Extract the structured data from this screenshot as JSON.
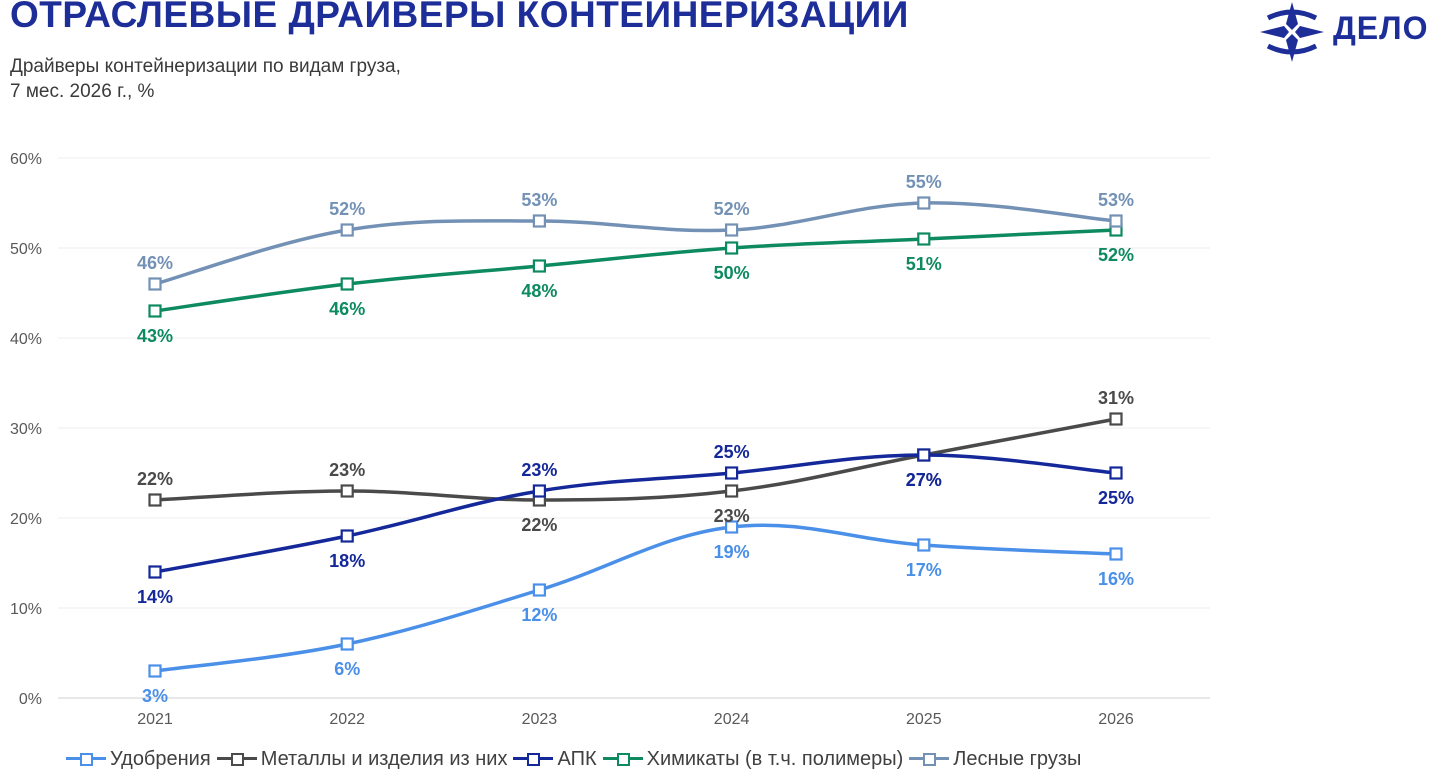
{
  "header": {
    "title": "ОТРАСЛЕВЫЕ ДРАЙВЕРЫ КОНТЕЙНЕРИЗАЦИИ",
    "subtitle_line1": "Драйверы контейнеризации по видам груза,",
    "subtitle_line2": "7 мес. 2026 г.,  %"
  },
  "logo": {
    "text": "ДЕЛО",
    "color": "#1d2e99",
    "icon": "delo-logo-icon"
  },
  "chart_data": {
    "type": "line",
    "categories": [
      "2021",
      "2022",
      "2023",
      "2024",
      "2025",
      "2026"
    ],
    "ylim": [
      0,
      60
    ],
    "y_ticks": [
      "0%",
      "10%",
      "20%",
      "30%",
      "40%",
      "50%",
      "60%"
    ],
    "grid": true,
    "legend_position": "bottom",
    "series": [
      {
        "name": "Удобрения",
        "color": "#4a8fe8",
        "values": [
          3,
          6,
          12,
          19,
          17,
          16
        ],
        "labels": [
          "3%",
          "6%",
          "12%",
          "19%",
          "17%",
          "16%"
        ]
      },
      {
        "name": "Металлы и изделия из них",
        "color": "#4a4a4a",
        "values": [
          22,
          23,
          22,
          23,
          27,
          31
        ],
        "labels": [
          "22%",
          "23%",
          "22%",
          "23%",
          "27%",
          "31%"
        ]
      },
      {
        "name": "АПК",
        "color": "#14289a",
        "values": [
          14,
          18,
          23,
          25,
          27,
          25
        ],
        "labels": [
          "14%",
          "18%",
          "23%",
          "25%",
          "27%",
          "25%"
        ]
      },
      {
        "name": "Химикаты (в т.ч. полимеры)",
        "color": "#0d8a5f",
        "values": [
          43,
          46,
          48,
          50,
          51,
          52
        ],
        "labels": [
          "43%",
          "46%",
          "48%",
          "50%",
          "51%",
          "52%"
        ]
      },
      {
        "name": "Лесные грузы",
        "color": "#7391b5",
        "values": [
          46,
          52,
          53,
          52,
          55,
          53
        ],
        "labels": [
          "46%",
          "52%",
          "53%",
          "52%",
          "55%",
          "53%"
        ]
      }
    ]
  }
}
